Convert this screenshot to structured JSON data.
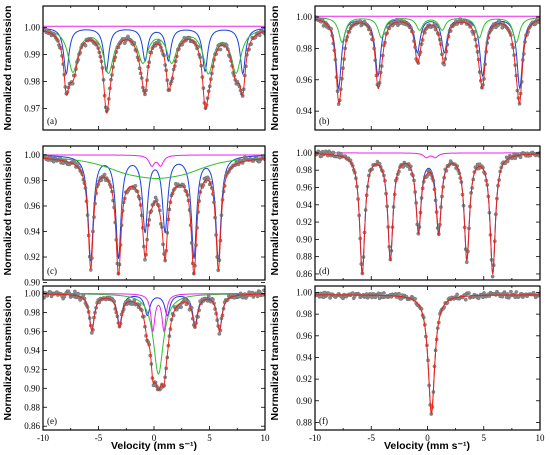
{
  "figure": {
    "ylabel": "Normalized transmission",
    "xlabel": "Velocity (mm s⁻¹)",
    "colors": {
      "data_points": "#8a8a8a",
      "total_fit": "#e8231c",
      "sextet": "#1a3fe0",
      "component_green": "#2ec02e",
      "component_magenta": "#ee22ee"
    }
  },
  "chart_data": [
    {
      "panel": "(a)",
      "type": "scatter",
      "xlim": [
        -10,
        10
      ],
      "ylim": [
        0.962,
        1.008
      ],
      "xticks": [
        -10,
        -5,
        0,
        5,
        10
      ],
      "yticks": [
        0.97,
        0.98,
        0.99,
        1.0
      ],
      "yticklabels": [
        "0.97",
        "0.98",
        "0.99",
        "1.00"
      ],
      "show_xticklabels": false,
      "baseline": 1.0,
      "series": [
        {
          "color": "#1a3fe0",
          "kind": "sextet",
          "lines": [
            {
              "x": -7.9,
              "depth": 0.017,
              "w": 0.28
            },
            {
              "x": -4.3,
              "depth": 0.016,
              "w": 0.28
            },
            {
              "x": -0.8,
              "depth": 0.012,
              "w": 0.28
            },
            {
              "x": 1.3,
              "depth": 0.012,
              "w": 0.28
            },
            {
              "x": 4.6,
              "depth": 0.016,
              "w": 0.28
            },
            {
              "x": 8.0,
              "depth": 0.017,
              "w": 0.28
            }
          ]
        },
        {
          "color": "#2ec02e",
          "kind": "sextet",
          "lines": [
            {
              "x": -7.3,
              "depth": 0.016,
              "w": 0.55
            },
            {
              "x": -4.1,
              "depth": 0.016,
              "w": 0.55
            },
            {
              "x": -1.0,
              "depth": 0.012,
              "w": 0.55
            },
            {
              "x": 1.6,
              "depth": 0.012,
              "w": 0.55
            },
            {
              "x": 4.9,
              "depth": 0.016,
              "w": 0.55
            },
            {
              "x": 7.4,
              "depth": 0.016,
              "w": 0.55
            }
          ]
        },
        {
          "color": "#ee22ee",
          "kind": "doublet",
          "lines": []
        }
      ]
    },
    {
      "panel": "(b)",
      "type": "scatter",
      "xlim": [
        -10,
        10
      ],
      "ylim": [
        0.928,
        1.007
      ],
      "xticks": [
        -10,
        -5,
        0,
        5,
        10
      ],
      "yticks": [
        0.94,
        0.96,
        0.98,
        1.0
      ],
      "yticklabels": [
        "0.94",
        "0.96",
        "0.98",
        "1.00"
      ],
      "show_xticklabels": false,
      "baseline": 1.0,
      "series": [
        {
          "color": "#1a3fe0",
          "kind": "sextet",
          "lines": [
            {
              "x": -7.9,
              "depth": 0.045,
              "w": 0.3
            },
            {
              "x": -4.4,
              "depth": 0.037,
              "w": 0.3
            },
            {
              "x": -0.9,
              "depth": 0.022,
              "w": 0.3
            },
            {
              "x": 1.5,
              "depth": 0.022,
              "w": 0.3
            },
            {
              "x": 4.9,
              "depth": 0.037,
              "w": 0.3
            },
            {
              "x": 8.2,
              "depth": 0.045,
              "w": 0.3
            }
          ]
        },
        {
          "color": "#2ec02e",
          "kind": "sextet",
          "lines": [
            {
              "x": -7.6,
              "depth": 0.016,
              "w": 0.35
            },
            {
              "x": -4.1,
              "depth": 0.013,
              "w": 0.35
            },
            {
              "x": -0.7,
              "depth": 0.008,
              "w": 0.35
            },
            {
              "x": 1.3,
              "depth": 0.008,
              "w": 0.35
            },
            {
              "x": 4.6,
              "depth": 0.013,
              "w": 0.35
            },
            {
              "x": 7.9,
              "depth": 0.016,
              "w": 0.35
            }
          ]
        },
        {
          "color": "#ee22ee",
          "kind": "doublet",
          "lines": []
        }
      ]
    },
    {
      "panel": "(c)",
      "type": "scatter",
      "xlim": [
        -10,
        10
      ],
      "ylim": [
        0.902,
        1.007
      ],
      "xticks": [
        -10,
        -5,
        0,
        5,
        10
      ],
      "yticks": [
        0.9,
        0.92,
        0.94,
        0.96,
        0.98,
        1.0
      ],
      "yticklabels": [
        "0.90",
        "0.92",
        "0.94",
        "0.96",
        "0.98",
        "1.00"
      ],
      "show_xticklabels": false,
      "baseline": 1.0,
      "series": [
        {
          "color": "#1a3fe0",
          "kind": "sextet",
          "lines": [
            {
              "x": -5.7,
              "depth": 0.082,
              "w": 0.28
            },
            {
              "x": -3.2,
              "depth": 0.079,
              "w": 0.28
            },
            {
              "x": -0.8,
              "depth": 0.058,
              "w": 0.28
            },
            {
              "x": 1.0,
              "depth": 0.058,
              "w": 0.28
            },
            {
              "x": 3.6,
              "depth": 0.079,
              "w": 0.28
            },
            {
              "x": 5.8,
              "depth": 0.082,
              "w": 0.28
            }
          ]
        },
        {
          "color": "#2ec02e",
          "kind": "broad",
          "lines": [
            {
              "x": -2.5,
              "depth": 0.008,
              "w": 2.8
            },
            {
              "x": 0.2,
              "depth": 0.01,
              "w": 2.8
            },
            {
              "x": 2.8,
              "depth": 0.008,
              "w": 2.8
            }
          ]
        },
        {
          "color": "#ee22ee",
          "kind": "doublet",
          "lines": [
            {
              "x": -0.2,
              "depth": 0.008,
              "w": 0.3
            },
            {
              "x": 0.6,
              "depth": 0.008,
              "w": 0.3
            }
          ]
        }
      ]
    },
    {
      "panel": "(d)",
      "type": "scatter",
      "xlim": [
        -10,
        10
      ],
      "ylim": [
        0.853,
        1.008
      ],
      "xticks": [
        -10,
        -5,
        0,
        5,
        10
      ],
      "yticks": [
        0.86,
        0.88,
        0.9,
        0.92,
        0.94,
        0.96,
        0.98,
        1.0
      ],
      "yticklabels": [
        "0.86",
        "0.88",
        "0.90",
        "0.92",
        "0.94",
        "0.96",
        "0.98",
        "1.00"
      ],
      "show_xticklabels": false,
      "baseline": 1.0,
      "series": [
        {
          "color": "#1a3fe0",
          "kind": "sextet",
          "lines": [
            {
              "x": -5.8,
              "depth": 0.138,
              "w": 0.28
            },
            {
              "x": -3.3,
              "depth": 0.121,
              "w": 0.28
            },
            {
              "x": -0.8,
              "depth": 0.088,
              "w": 0.28
            },
            {
              "x": 1.0,
              "depth": 0.088,
              "w": 0.28
            },
            {
              "x": 3.5,
              "depth": 0.121,
              "w": 0.28
            },
            {
              "x": 5.8,
              "depth": 0.138,
              "w": 0.28
            }
          ]
        },
        {
          "color": "#2ec02e",
          "kind": "broad",
          "lines": []
        },
        {
          "color": "#ee22ee",
          "kind": "doublet",
          "lines": [
            {
              "x": -0.1,
              "depth": 0.005,
              "w": 0.3
            },
            {
              "x": 0.7,
              "depth": 0.005,
              "w": 0.3
            }
          ]
        }
      ]
    },
    {
      "panel": "(e)",
      "type": "scatter",
      "xlim": [
        -10,
        10
      ],
      "ylim": [
        0.856,
        1.008
      ],
      "xticks": [
        -10,
        -5,
        0,
        5,
        10
      ],
      "xticklabels": [
        "-10",
        "-5",
        "0",
        "5",
        "10"
      ],
      "yticks": [
        0.86,
        0.88,
        0.9,
        0.92,
        0.94,
        0.96,
        0.98,
        1.0
      ],
      "yticklabels": [
        "0.86",
        "0.88",
        "0.90",
        "0.92",
        "0.94",
        "0.96",
        "0.98",
        "1.00"
      ],
      "show_xticklabels": true,
      "baseline": 1.0,
      "series": [
        {
          "color": "#1a3fe0",
          "kind": "sextet",
          "lines": [
            {
              "x": -5.6,
              "depth": 0.038,
              "w": 0.28
            },
            {
              "x": -3.1,
              "depth": 0.032,
              "w": 0.28
            },
            {
              "x": -0.6,
              "depth": 0.022,
              "w": 0.28
            },
            {
              "x": 1.2,
              "depth": 0.022,
              "w": 0.28
            },
            {
              "x": 3.7,
              "depth": 0.032,
              "w": 0.28
            },
            {
              "x": 5.9,
              "depth": 0.038,
              "w": 0.28
            }
          ]
        },
        {
          "color": "#2ec02e",
          "kind": "singlet",
          "lines": [
            {
              "x": 0.4,
              "depth": 0.085,
              "w": 0.55
            }
          ]
        },
        {
          "color": "#ee22ee",
          "kind": "doublet",
          "lines": [
            {
              "x": -0.1,
              "depth": 0.038,
              "w": 0.22
            },
            {
              "x": 0.9,
              "depth": 0.038,
              "w": 0.22
            }
          ]
        }
      ]
    },
    {
      "panel": "(f)",
      "type": "scatter",
      "xlim": [
        -10,
        10
      ],
      "ylim": [
        0.873,
        1.006
      ],
      "xticks": [
        -10,
        -5,
        0,
        5,
        10
      ],
      "xticklabels": [
        "-10",
        "-5",
        "0",
        "5",
        "10"
      ],
      "yticks": [
        0.88,
        0.9,
        0.92,
        0.94,
        0.96,
        0.98,
        1.0
      ],
      "yticklabels": [
        "0.88",
        "0.90",
        "0.92",
        "0.94",
        "0.96",
        "0.98",
        "1.00"
      ],
      "show_xticklabels": true,
      "baseline": 0.998,
      "series": [
        {
          "color": "#e8231c",
          "kind": "singlet",
          "lines": [
            {
              "x": 0.35,
              "depth": 0.11,
              "w": 0.35
            }
          ]
        }
      ]
    }
  ]
}
